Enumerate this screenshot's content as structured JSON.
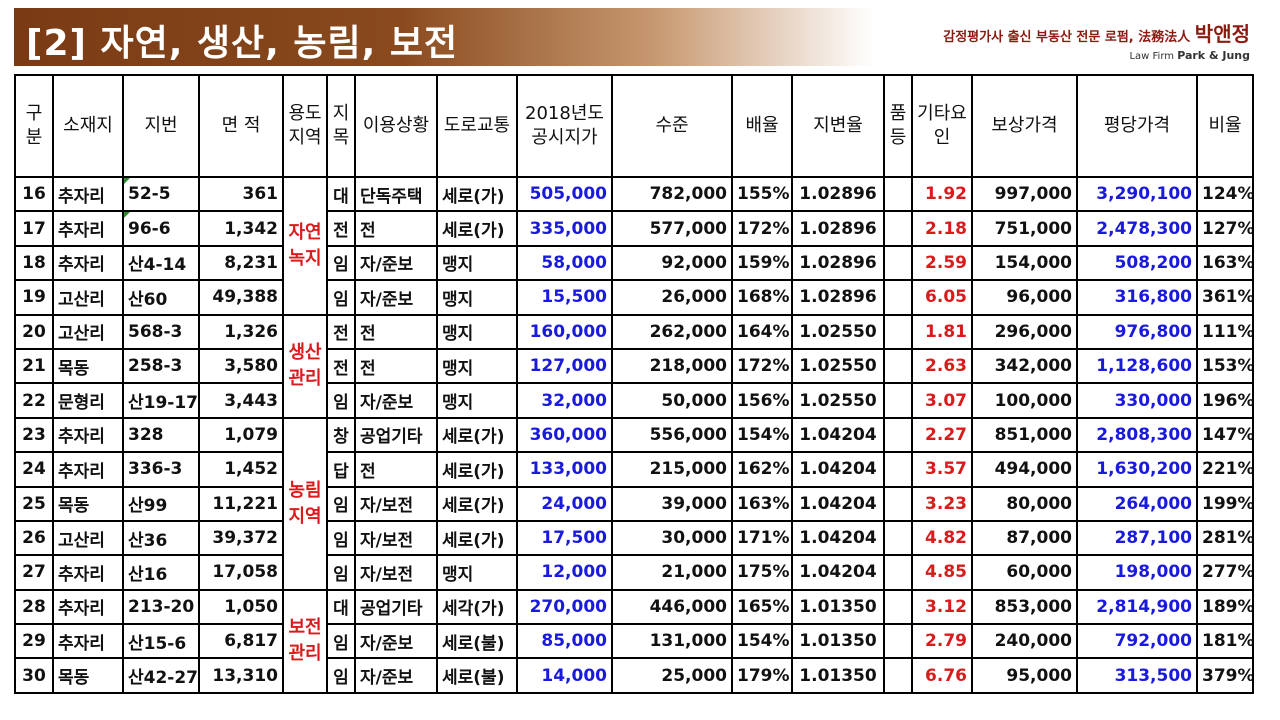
{
  "header": {
    "title": "[2] 자연, 생산, 농림, 보전",
    "brand_line1": "감정평가사 출신 부동산 전문 로펌, 法務法人",
    "brand_name": "박앤정",
    "brand_line2_prefix": "Law Firm",
    "brand_line2_name": "Park & Jung"
  },
  "table": {
    "headers": {
      "gubun": "구분",
      "location": "소재지",
      "lot": "지번",
      "area": "면 적",
      "zone": "용도지역",
      "jimok": "지목",
      "usage": "이용상황",
      "road": "도로교통",
      "price": "2018년도 공시지가",
      "level": "수준",
      "ratio": "배율",
      "change": "지변율",
      "quality": "품등",
      "other": "기타요인",
      "comp": "보상가격",
      "pyeong": "평당가격",
      "rate": "비율"
    },
    "zones": [
      "자연녹지",
      "생산관리",
      "농림지역",
      "보전관리"
    ],
    "rows": [
      {
        "no": "16",
        "loc": "추자리",
        "lot": "52-5",
        "area": "361",
        "jimok": "대",
        "usage": "단독주택",
        "road": "세로(가)",
        "price": "505,000",
        "level": "782,000",
        "ratio": "155%",
        "change": "1.02896",
        "quality": "",
        "other": "1.92",
        "comp": "997,000",
        "pyeong": "3,290,100",
        "rate": "124%"
      },
      {
        "no": "17",
        "loc": "추자리",
        "lot": "96-6",
        "area": "1,342",
        "jimok": "전",
        "usage": "전",
        "road": "세로(가)",
        "price": "335,000",
        "level": "577,000",
        "ratio": "172%",
        "change": "1.02896",
        "quality": "",
        "other": "2.18",
        "comp": "751,000",
        "pyeong": "2,478,300",
        "rate": "127%"
      },
      {
        "no": "18",
        "loc": "추자리",
        "lot": "산4-14",
        "area": "8,231",
        "jimok": "임",
        "usage": "자/준보",
        "road": "맹지",
        "price": "58,000",
        "level": "92,000",
        "ratio": "159%",
        "change": "1.02896",
        "quality": "",
        "other": "2.59",
        "comp": "154,000",
        "pyeong": "508,200",
        "rate": "163%"
      },
      {
        "no": "19",
        "loc": "고산리",
        "lot": "산60",
        "area": "49,388",
        "jimok": "임",
        "usage": "자/준보",
        "road": "맹지",
        "price": "15,500",
        "level": "26,000",
        "ratio": "168%",
        "change": "1.02896",
        "quality": "",
        "other": "6.05",
        "comp": "96,000",
        "pyeong": "316,800",
        "rate": "361%"
      },
      {
        "no": "20",
        "loc": "고산리",
        "lot": "568-3",
        "area": "1,326",
        "jimok": "전",
        "usage": "전",
        "road": "맹지",
        "price": "160,000",
        "level": "262,000",
        "ratio": "164%",
        "change": "1.02550",
        "quality": "",
        "other": "1.81",
        "comp": "296,000",
        "pyeong": "976,800",
        "rate": "111%"
      },
      {
        "no": "21",
        "loc": "목동",
        "lot": "258-3",
        "area": "3,580",
        "jimok": "전",
        "usage": "전",
        "road": "맹지",
        "price": "127,000",
        "level": "218,000",
        "ratio": "172%",
        "change": "1.02550",
        "quality": "",
        "other": "2.63",
        "comp": "342,000",
        "pyeong": "1,128,600",
        "rate": "153%"
      },
      {
        "no": "22",
        "loc": "문형리",
        "lot": "산19-17",
        "area": "3,443",
        "jimok": "임",
        "usage": "자/준보",
        "road": "맹지",
        "price": "32,000",
        "level": "50,000",
        "ratio": "156%",
        "change": "1.02550",
        "quality": "",
        "other": "3.07",
        "comp": "100,000",
        "pyeong": "330,000",
        "rate": "196%"
      },
      {
        "no": "23",
        "loc": "추자리",
        "lot": "328",
        "area": "1,079",
        "jimok": "창",
        "usage": "공업기타",
        "road": "세로(가)",
        "price": "360,000",
        "level": "556,000",
        "ratio": "154%",
        "change": "1.04204",
        "quality": "",
        "other": "2.27",
        "comp": "851,000",
        "pyeong": "2,808,300",
        "rate": "147%"
      },
      {
        "no": "24",
        "loc": "추자리",
        "lot": "336-3",
        "area": "1,452",
        "jimok": "답",
        "usage": "전",
        "road": "세로(가)",
        "price": "133,000",
        "level": "215,000",
        "ratio": "162%",
        "change": "1.04204",
        "quality": "",
        "other": "3.57",
        "comp": "494,000",
        "pyeong": "1,630,200",
        "rate": "221%"
      },
      {
        "no": "25",
        "loc": "목동",
        "lot": "산99",
        "area": "11,221",
        "jimok": "임",
        "usage": "자/보전",
        "road": "세로(가)",
        "price": "24,000",
        "level": "39,000",
        "ratio": "163%",
        "change": "1.04204",
        "quality": "",
        "other": "3.23",
        "comp": "80,000",
        "pyeong": "264,000",
        "rate": "199%"
      },
      {
        "no": "26",
        "loc": "고산리",
        "lot": "산36",
        "area": "39,372",
        "jimok": "임",
        "usage": "자/보전",
        "road": "세로(가)",
        "price": "17,500",
        "level": "30,000",
        "ratio": "171%",
        "change": "1.04204",
        "quality": "",
        "other": "4.82",
        "comp": "87,000",
        "pyeong": "287,100",
        "rate": "281%"
      },
      {
        "no": "27",
        "loc": "추자리",
        "lot": "산16",
        "area": "17,058",
        "jimok": "임",
        "usage": "자/보전",
        "road": "맹지",
        "price": "12,000",
        "level": "21,000",
        "ratio": "175%",
        "change": "1.04204",
        "quality": "",
        "other": "4.85",
        "comp": "60,000",
        "pyeong": "198,000",
        "rate": "277%"
      },
      {
        "no": "28",
        "loc": "추자리",
        "lot": "213-20",
        "area": "1,050",
        "jimok": "대",
        "usage": "공업기타",
        "road": "세각(가)",
        "price": "270,000",
        "level": "446,000",
        "ratio": "165%",
        "change": "1.01350",
        "quality": "",
        "other": "3.12",
        "comp": "853,000",
        "pyeong": "2,814,900",
        "rate": "189%"
      },
      {
        "no": "29",
        "loc": "추자리",
        "lot": "산15-6",
        "area": "6,817",
        "jimok": "임",
        "usage": "자/준보",
        "road": "세로(불)",
        "price": "85,000",
        "level": "131,000",
        "ratio": "154%",
        "change": "1.01350",
        "quality": "",
        "other": "2.79",
        "comp": "240,000",
        "pyeong": "792,000",
        "rate": "181%"
      },
      {
        "no": "30",
        "loc": "목동",
        "lot": "산42-27",
        "area": "13,310",
        "jimok": "임",
        "usage": "자/준보",
        "road": "세로(불)",
        "price": "14,000",
        "level": "25,000",
        "ratio": "179%",
        "change": "1.01350",
        "quality": "",
        "other": "6.76",
        "comp": "95,000",
        "pyeong": "313,500",
        "rate": "379%"
      }
    ]
  }
}
